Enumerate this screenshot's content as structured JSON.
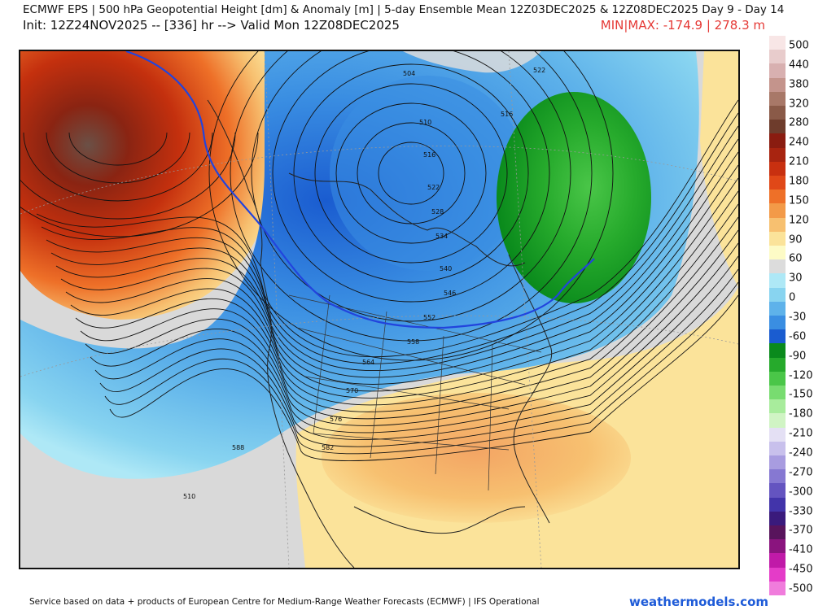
{
  "header": {
    "line1": "ECMWF EPS | 500 hPa Geopotential Height [dm] & Anomaly [m] | 5-day Ensemble Mean 12Z03DEC2025 & 12Z08DEC2025   Day 9 - Day 14",
    "line2": "Init: 12Z24NOV2025 -- [336] hr --> Valid Mon 12Z08DEC2025",
    "minmax": "MIN|MAX: -174.9 | 278.3 m"
  },
  "footer": {
    "attribution": "Service based on data + products of European Centre for Medium-Range Weather Forecasts (ECMWF) | IFS Operational",
    "brand": "weathermodels.com"
  },
  "contour_labels": [
    "504",
    "510",
    "516",
    "522",
    "528",
    "534",
    "540",
    "546",
    "552",
    "558",
    "564",
    "570",
    "576",
    "582",
    "588",
    "510",
    "516",
    "522"
  ],
  "colorbar": {
    "labels": [
      "500",
      "440",
      "380",
      "320",
      "280",
      "240",
      "210",
      "180",
      "150",
      "120",
      "90",
      "60",
      "30",
      "0",
      "-30",
      "-60",
      "-90",
      "-120",
      "-150",
      "-180",
      "-210",
      "-240",
      "-270",
      "-300",
      "-330",
      "-370",
      "-410",
      "-450",
      "-500"
    ],
    "colors": [
      "#f8e6e6",
      "#e8cccc",
      "#d8b0b0",
      "#c4948c",
      "#a87868",
      "#8a5a48",
      "#6e3c2c",
      "#8a1c10",
      "#a82410",
      "#c83010",
      "#e04818",
      "#ee7028",
      "#f39a48",
      "#f7c070",
      "#fbe39a",
      "#fdfbc6",
      "#dcdcdc",
      "#aee8f6",
      "#88d4f0",
      "#5eb2ea",
      "#3a8ee2",
      "#1a5cd0",
      "#0a8a1c",
      "#26aa2c",
      "#4ac648",
      "#78dc70",
      "#a8ec9c",
      "#d0f4c4",
      "#e4e0f4",
      "#c8c0ec",
      "#a89ce0",
      "#8678d2",
      "#6454c0",
      "#4234aa",
      "#3a1a7c",
      "#58145c",
      "#8a147e",
      "#c01aa8",
      "#e43cc8",
      "#f07cdc"
    ]
  }
}
